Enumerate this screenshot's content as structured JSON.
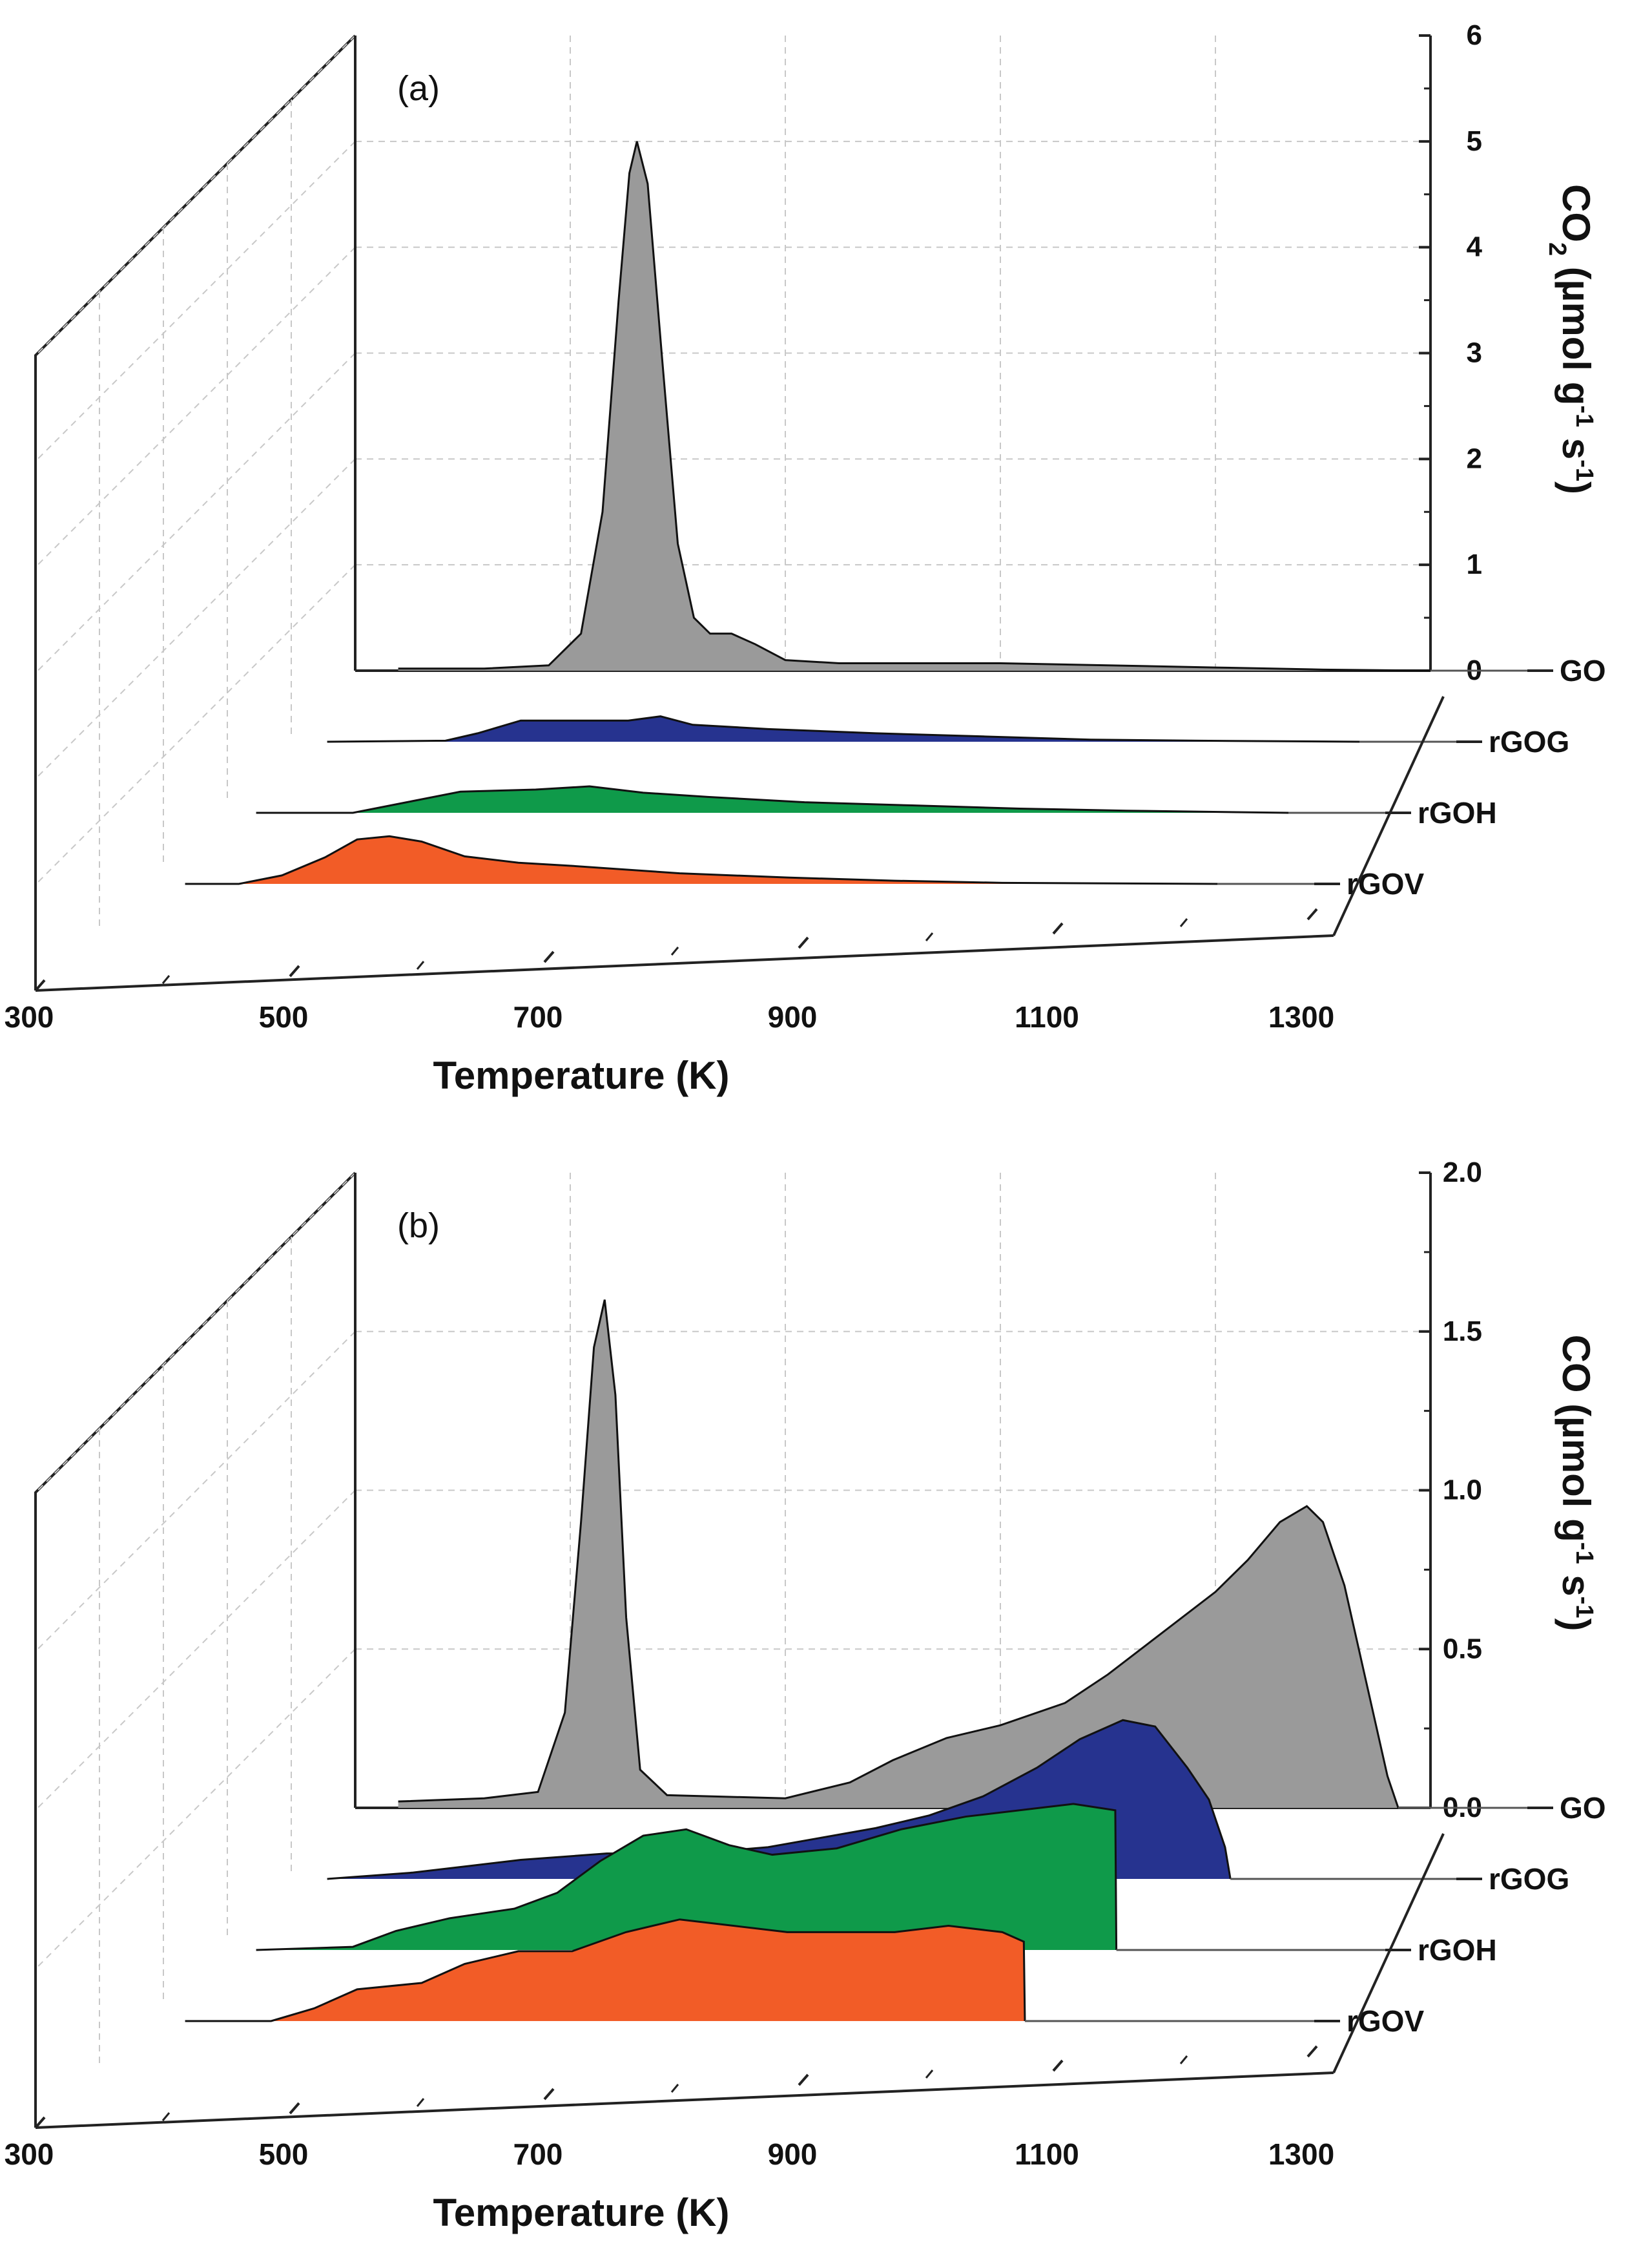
{
  "chart_data": [
    {
      "type": "area",
      "panel_label": "(a)",
      "ylabel": "CO2 (µmol g-1 s-1)",
      "ylabel_parts": {
        "base": "CO",
        "sub": "2",
        "rest": " (µmol g",
        "sup1": "-1",
        "mid": " s",
        "sup2": "-1",
        "end": ")"
      },
      "xlabel": "Temperature (K)",
      "xlim": [
        300,
        1300
      ],
      "xticks": [
        300,
        500,
        700,
        900,
        1100,
        1300
      ],
      "ylim": [
        0,
        6
      ],
      "yticks": [
        "0",
        "1",
        "2",
        "3",
        "4",
        "5",
        "6"
      ],
      "series": [
        {
          "name": "GO",
          "color": "#9a9a9a",
          "points": [
            [
              340,
              0.02
            ],
            [
              420,
              0.02
            ],
            [
              480,
              0.05
            ],
            [
              510,
              0.35
            ],
            [
              530,
              1.5
            ],
            [
              545,
              3.5
            ],
            [
              555,
              4.7
            ],
            [
              562,
              5.0
            ],
            [
              572,
              4.6
            ],
            [
              585,
              3.0
            ],
            [
              600,
              1.2
            ],
            [
              615,
              0.5
            ],
            [
              630,
              0.35
            ],
            [
              650,
              0.35
            ],
            [
              672,
              0.25
            ],
            [
              700,
              0.1
            ],
            [
              750,
              0.07
            ],
            [
              800,
              0.07
            ],
            [
              900,
              0.07
            ],
            [
              1000,
              0.05
            ],
            [
              1100,
              0.03
            ],
            [
              1200,
              0.01
            ],
            [
              1300,
              0.0
            ]
          ]
        },
        {
          "name": "rGOG",
          "color": "#26338f",
          "points": [
            [
              340,
              0.0
            ],
            [
              450,
              0.01
            ],
            [
              480,
              0.08
            ],
            [
              520,
              0.2
            ],
            [
              560,
              0.2
            ],
            [
              620,
              0.2
            ],
            [
              650,
              0.24
            ],
            [
              680,
              0.16
            ],
            [
              750,
              0.12
            ],
            [
              850,
              0.08
            ],
            [
              950,
              0.05
            ],
            [
              1050,
              0.02
            ],
            [
              1150,
              0.01
            ],
            [
              1300,
              0.0
            ]
          ]
        },
        {
          "name": "rGOH",
          "color": "#0f9a4a",
          "points": [
            [
              340,
              0.0
            ],
            [
              430,
              0.0
            ],
            [
              480,
              0.1
            ],
            [
              530,
              0.2
            ],
            [
              600,
              0.22
            ],
            [
              650,
              0.25
            ],
            [
              700,
              0.19
            ],
            [
              760,
              0.15
            ],
            [
              850,
              0.1
            ],
            [
              950,
              0.07
            ],
            [
              1050,
              0.04
            ],
            [
              1150,
              0.02
            ],
            [
              1300,
              0.0
            ]
          ]
        },
        {
          "name": "rGOV",
          "color": "#f25c27",
          "points": [
            [
              340,
              0.0
            ],
            [
              390,
              0.0
            ],
            [
              430,
              0.08
            ],
            [
              470,
              0.25
            ],
            [
              500,
              0.42
            ],
            [
              530,
              0.45
            ],
            [
              560,
              0.4
            ],
            [
              600,
              0.26
            ],
            [
              650,
              0.2
            ],
            [
              700,
              0.17
            ],
            [
              800,
              0.1
            ],
            [
              900,
              0.06
            ],
            [
              1000,
              0.03
            ],
            [
              1100,
              0.01
            ],
            [
              1300,
              0.0
            ]
          ]
        }
      ]
    },
    {
      "type": "area",
      "panel_label": "(b)",
      "ylabel": "CO (µmol g-1 s-1)",
      "ylabel_parts": {
        "base": "CO",
        "sub": "",
        "rest": " (µmol g",
        "sup1": "-1",
        "mid": " s",
        "sup2": "-1",
        "end": ")"
      },
      "xlabel": "Temperature (K)",
      "xlim": [
        300,
        1300
      ],
      "xticks": [
        300,
        500,
        700,
        900,
        1100,
        1300
      ],
      "ylim": [
        0,
        2.0
      ],
      "yticks": [
        "0.0",
        "0.5",
        "1.0",
        "1.5",
        "2.0"
      ],
      "series": [
        {
          "name": "GO",
          "color": "#9a9a9a",
          "points": [
            [
              340,
              0.02
            ],
            [
              420,
              0.03
            ],
            [
              470,
              0.05
            ],
            [
              495,
              0.3
            ],
            [
              510,
              0.9
            ],
            [
              522,
              1.45
            ],
            [
              532,
              1.6
            ],
            [
              542,
              1.3
            ],
            [
              552,
              0.6
            ],
            [
              565,
              0.12
            ],
            [
              590,
              0.04
            ],
            [
              700,
              0.03
            ],
            [
              760,
              0.08
            ],
            [
              800,
              0.15
            ],
            [
              850,
              0.22
            ],
            [
              900,
              0.26
            ],
            [
              960,
              0.33
            ],
            [
              1000,
              0.42
            ],
            [
              1050,
              0.55
            ],
            [
              1100,
              0.68
            ],
            [
              1130,
              0.78
            ],
            [
              1160,
              0.9
            ],
            [
              1185,
              0.95
            ],
            [
              1200,
              0.9
            ],
            [
              1220,
              0.7
            ],
            [
              1240,
              0.4
            ],
            [
              1260,
              0.1
            ],
            [
              1270,
              0.0
            ]
          ]
        },
        {
          "name": "rGOG",
          "color": "#26338f",
          "points": [
            [
              340,
              0.0
            ],
            [
              420,
              0.02
            ],
            [
              470,
              0.04
            ],
            [
              520,
              0.06
            ],
            [
              600,
              0.08
            ],
            [
              680,
              0.08
            ],
            [
              750,
              0.1
            ],
            [
              800,
              0.13
            ],
            [
              850,
              0.16
            ],
            [
              900,
              0.2
            ],
            [
              950,
              0.26
            ],
            [
              1000,
              0.35
            ],
            [
              1040,
              0.44
            ],
            [
              1080,
              0.5
            ],
            [
              1110,
              0.48
            ],
            [
              1140,
              0.35
            ],
            [
              1160,
              0.25
            ],
            [
              1175,
              0.1
            ],
            [
              1180,
              0.0
            ]
          ]
        },
        {
          "name": "rGOH",
          "color": "#0f9a4a",
          "points": [
            [
              340,
              0.0
            ],
            [
              430,
              0.01
            ],
            [
              470,
              0.06
            ],
            [
              520,
              0.1
            ],
            [
              580,
              0.13
            ],
            [
              620,
              0.18
            ],
            [
              660,
              0.28
            ],
            [
              700,
              0.36
            ],
            [
              740,
              0.38
            ],
            [
              780,
              0.33
            ],
            [
              820,
              0.3
            ],
            [
              880,
              0.32
            ],
            [
              940,
              0.38
            ],
            [
              1000,
              0.42
            ],
            [
              1050,
              0.44
            ],
            [
              1100,
              0.46
            ],
            [
              1139,
              0.44
            ],
            [
              1140,
              0.0
            ]
          ]
        },
        {
          "name": "rGOV",
          "color": "#f25c27",
          "points": [
            [
              340,
              0.0
            ],
            [
              420,
              0.0
            ],
            [
              460,
              0.04
            ],
            [
              500,
              0.1
            ],
            [
              560,
              0.12
            ],
            [
              600,
              0.18
            ],
            [
              650,
              0.22
            ],
            [
              700,
              0.22
            ],
            [
              750,
              0.28
            ],
            [
              800,
              0.32
            ],
            [
              850,
              0.3
            ],
            [
              900,
              0.28
            ],
            [
              950,
              0.28
            ],
            [
              1000,
              0.28
            ],
            [
              1050,
              0.3
            ],
            [
              1100,
              0.28
            ],
            [
              1120,
              0.25
            ],
            [
              1121,
              0.0
            ]
          ]
        }
      ]
    }
  ]
}
